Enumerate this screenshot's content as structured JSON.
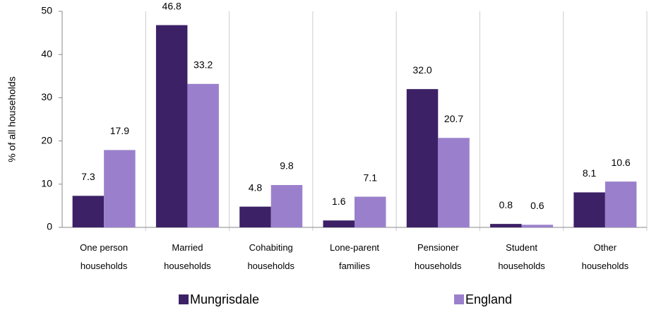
{
  "chart_data": {
    "type": "bar",
    "y_label": "% of all households",
    "categories": [
      "One person households",
      "Married households",
      "Cohabiting households",
      "Lone-parent families",
      "Pensioner households",
      "Student households",
      "Other households"
    ],
    "series": [
      {
        "name": "Mungrisdale",
        "color": "#3c2166",
        "values": [
          7.3,
          46.8,
          4.8,
          1.6,
          32.0,
          0.8,
          8.1
        ],
        "value_labels": [
          "7.3",
          "46.8",
          "4.8",
          "1.6",
          "32.0",
          "0.8",
          "8.1"
        ]
      },
      {
        "name": "England",
        "color": "#9a80cc",
        "values": [
          17.9,
          33.2,
          9.8,
          7.1,
          20.7,
          0.6,
          10.6
        ],
        "value_labels": [
          "17.9",
          "33.2",
          "9.8",
          "7.1",
          "20.7",
          "0.6",
          "10.6"
        ]
      }
    ],
    "ylim": [
      0,
      50
    ],
    "yticks": [
      0,
      10,
      20,
      30,
      40,
      50
    ],
    "legend": "bottom"
  }
}
